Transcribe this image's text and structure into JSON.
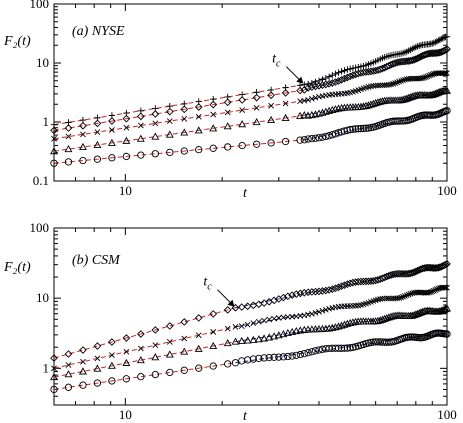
{
  "colors": {
    "fit_before": "#cc2222",
    "fit_after": "#1a1a8c",
    "marker": "#000000"
  },
  "chart_data": [
    {
      "type": "scatter",
      "title": "(a) NYSE",
      "xlabel": "t",
      "ylabel": "F₂(t)",
      "xscale": "log",
      "yscale": "log",
      "xlim": [
        6,
        100
      ],
      "ylim": [
        0.1,
        100
      ],
      "xtick_labels": [
        "10",
        "100"
      ],
      "ytick_labels": [
        "0.1",
        "1",
        "10",
        "100"
      ],
      "annotation": {
        "text": "t",
        "subscript": "c",
        "points_to_t": 36
      },
      "crossover_t": 36,
      "series": [
        {
          "marker": "plus",
          "t": [
            6,
            36,
            100
          ],
          "F2": [
            0.9,
            4.3,
            27
          ]
        },
        {
          "marker": "diamond",
          "t": [
            6,
            36,
            100
          ],
          "F2": [
            0.72,
            3.5,
            17
          ]
        },
        {
          "marker": "cross",
          "t": [
            6,
            36,
            100
          ],
          "F2": [
            0.52,
            2.3,
            7.0
          ]
        },
        {
          "marker": "triangle",
          "t": [
            6,
            36,
            100
          ],
          "F2": [
            0.32,
            1.3,
            3.3
          ]
        },
        {
          "marker": "circle",
          "t": [
            6,
            36,
            100
          ],
          "F2": [
            0.2,
            0.5,
            1.5
          ]
        }
      ]
    },
    {
      "type": "scatter",
      "title": "(b) CSM",
      "xlabel": "t",
      "ylabel": "F₂(t)",
      "xscale": "log",
      "yscale": "log",
      "xlim": [
        6,
        100
      ],
      "ylim": [
        0.3,
        100
      ],
      "xtick_labels": [
        "10",
        "100"
      ],
      "ytick_labels": [
        "1",
        "10",
        "100"
      ],
      "annotation": {
        "text": "t",
        "subscript": "c",
        "points_to_t": 22
      },
      "crossover_t": 22,
      "series": [
        {
          "marker": "diamond",
          "t": [
            6,
            22,
            100
          ],
          "F2": [
            1.4,
            7.3,
            30
          ]
        },
        {
          "marker": "cross",
          "t": [
            6,
            22,
            100
          ],
          "F2": [
            1.0,
            3.9,
            14
          ]
        },
        {
          "marker": "triangle",
          "t": [
            6,
            22,
            100
          ],
          "F2": [
            0.75,
            2.4,
            7.0
          ]
        },
        {
          "marker": "circle",
          "t": [
            6,
            22,
            100
          ],
          "F2": [
            0.5,
            1.2,
            3.2
          ]
        }
      ]
    }
  ]
}
